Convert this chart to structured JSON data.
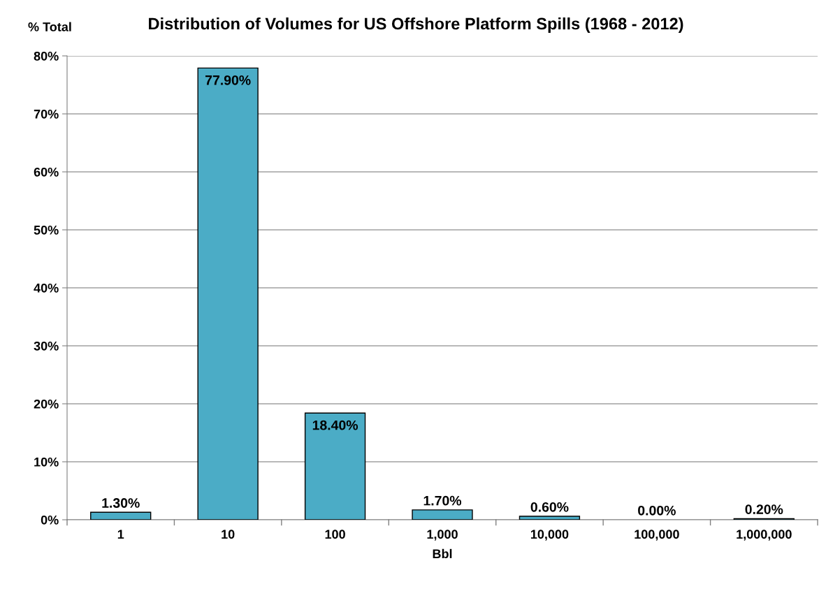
{
  "chart_data": {
    "type": "bar",
    "title": "Distribution of Volumes for US Offshore Platform Spills (1968 - 2012)",
    "ylabel": "% Total",
    "xlabel": "Bbl",
    "categories": [
      "1",
      "10",
      "100",
      "1,000",
      "10,000",
      "100,000",
      "1,000,000"
    ],
    "values": [
      1.3,
      77.9,
      18.4,
      1.7,
      0.6,
      0.0,
      0.2
    ],
    "value_labels": [
      "1.30%",
      "77.90%",
      "18.40%",
      "1.70%",
      "0.60%",
      "0.00%",
      "0.20%"
    ],
    "color": "#4bacc6",
    "ylim": [
      0,
      80
    ],
    "yticks": [
      {
        "value": 0,
        "label": "0%"
      },
      {
        "value": 10,
        "label": "10%"
      },
      {
        "value": 20,
        "label": "20%"
      },
      {
        "value": 30,
        "label": "30%"
      },
      {
        "value": 40,
        "label": "40%"
      },
      {
        "value": 50,
        "label": "50%"
      },
      {
        "value": 60,
        "label": "60%"
      },
      {
        "value": 70,
        "label": "70%"
      },
      {
        "value": 80,
        "label": "80%"
      }
    ],
    "grid": "y"
  }
}
